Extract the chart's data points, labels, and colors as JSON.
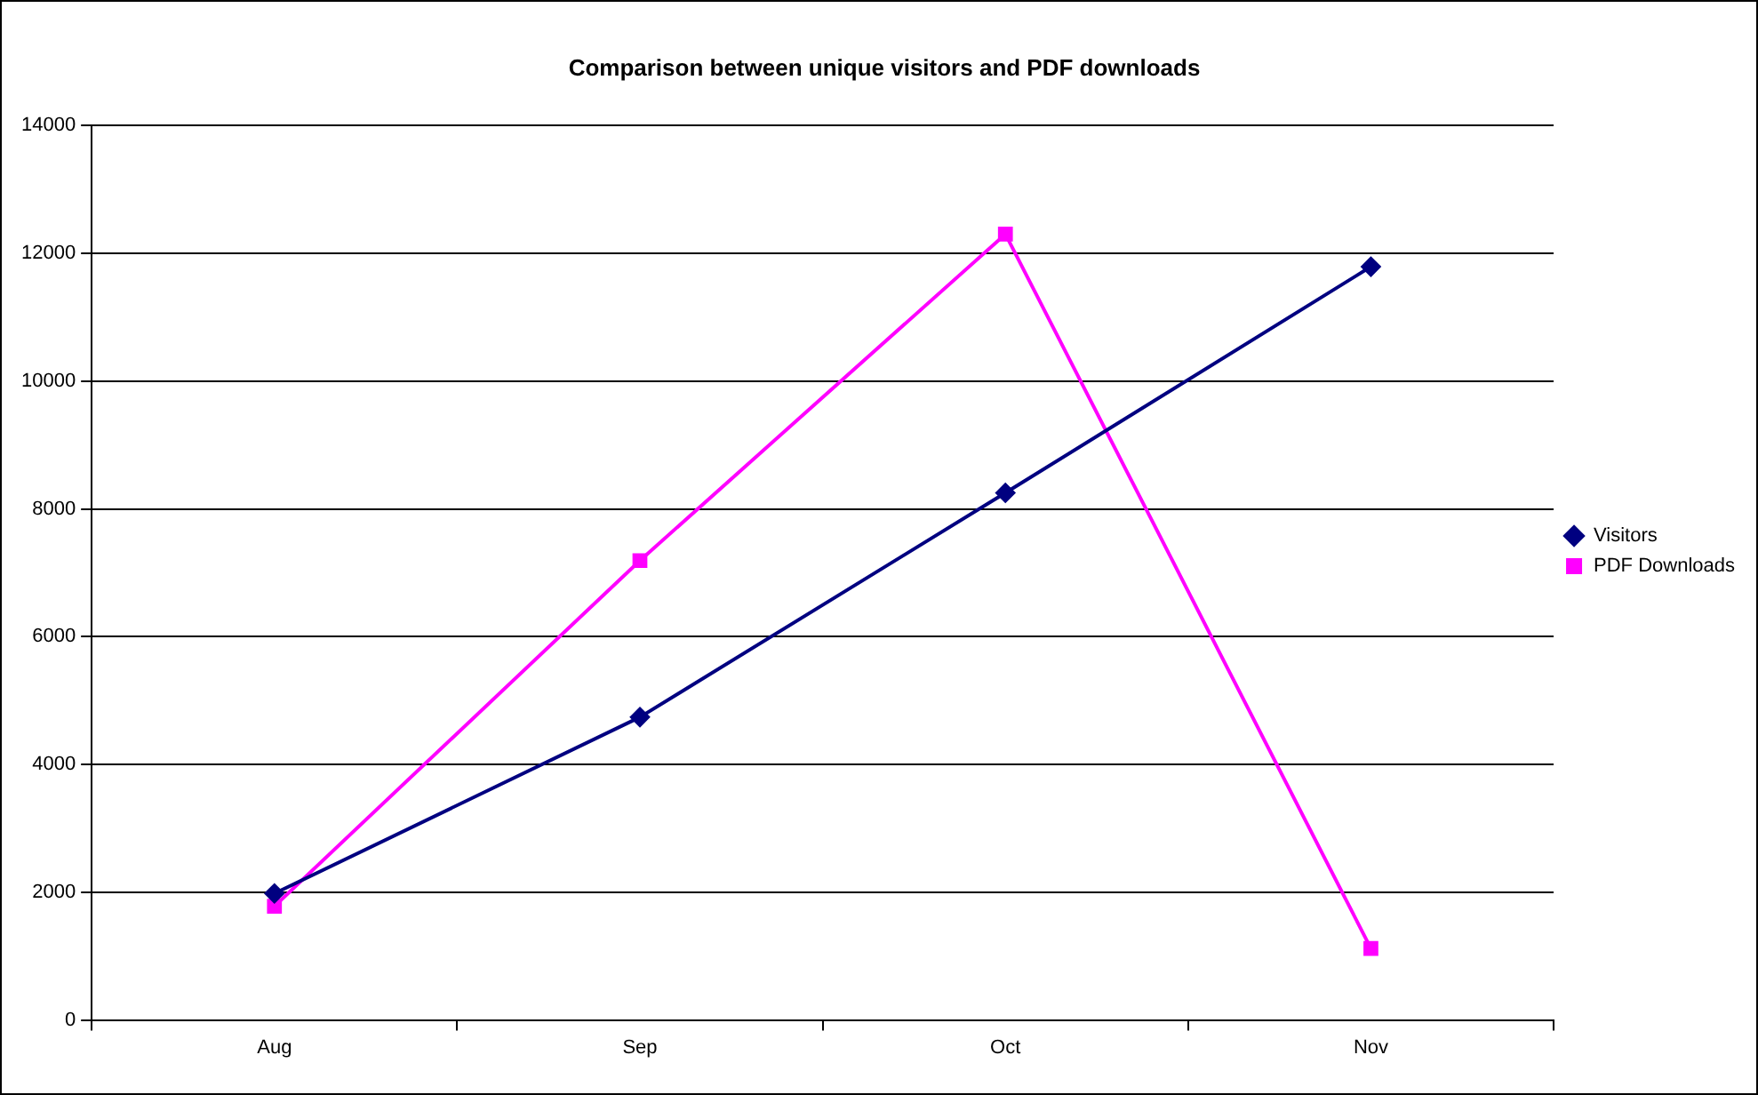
{
  "chart_data": {
    "type": "line",
    "title": "Comparison between unique visitors and PDF downloads",
    "categories": [
      "Aug",
      "Sep",
      "Oct",
      "Nov"
    ],
    "series": [
      {
        "name": "Visitors",
        "color": "#000080",
        "values": [
          1980,
          4740,
          8250,
          11790
        ],
        "marker": "diamond"
      },
      {
        "name": "PDF Downloads",
        "color": "#ff00ff",
        "values": [
          1780,
          7190,
          12300,
          1120
        ],
        "marker": "square"
      }
    ],
    "ylim": [
      0,
      14000
    ],
    "yticks": [
      0,
      2000,
      4000,
      6000,
      8000,
      10000,
      12000,
      14000
    ],
    "grid": "y",
    "legend": "right",
    "line_style": "solid"
  }
}
